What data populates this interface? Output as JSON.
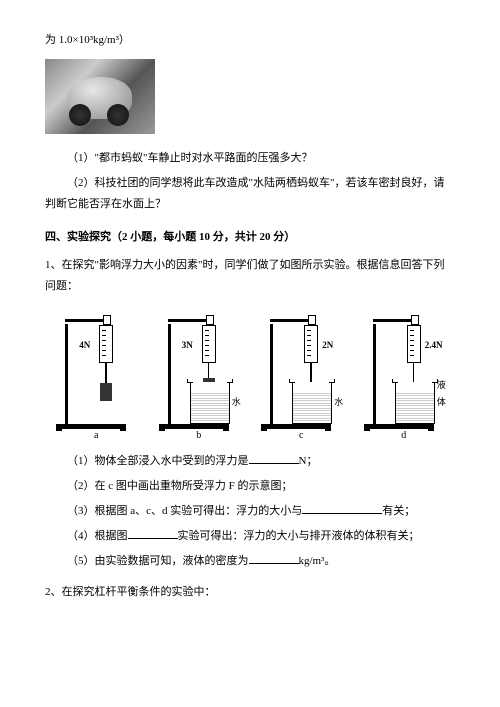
{
  "intro": "为 1.0×10³kg/m³）",
  "q1": "（1）\"都市蚂蚁\"车静止时对水平路面的压强多大？",
  "q2": "（2）科技社团的同学想将此车改造成\"水陆两栖蚂蚁车\"，若该车密封良好，请判断它能否浮在水面上？",
  "section4": "四、实验探究（2 小题，每小题 10 分，共计 20 分）",
  "p1": "1、在探究\"影响浮力大小的因素\"时，同学们做了如图所示实验。根据信息回答下列问题：",
  "experiments": [
    {
      "label": "a",
      "reading": "4N",
      "readingLeft": "27px",
      "beaker": false,
      "liquid": "",
      "hookH": "20px",
      "weightTop": "74px"
    },
    {
      "label": "b",
      "reading": "3N",
      "readingLeft": "27px",
      "beaker": true,
      "liquid": "水",
      "liquidLeft": "78px",
      "hookH": "15px",
      "weightTop": "69px"
    },
    {
      "label": "c",
      "reading": "2N",
      "readingLeft": "65px",
      "beaker": true,
      "liquid": "水",
      "liquidLeft": "78px",
      "hookH": "22px",
      "weightTop": "76px"
    },
    {
      "label": "d",
      "reading": "2.4N",
      "readingLeft": "65px",
      "beaker": true,
      "liquid": "液体",
      "liquidLeft": "78px",
      "hookH": "22px",
      "weightTop": "76px"
    }
  ],
  "sub1a": "（1）物体全部浸入水中受到的浮力是",
  "sub1b": "N；",
  "sub2": "（2）在 c 图中画出重物所受浮力 F 的示意图；",
  "sub3a": "（3）根据图 a、c、d 实验可得出：浮力的大小与",
  "sub3b": "有关；",
  "sub4a": "（4）根据图",
  "sub4b": "实验可得出：浮力的大小与排开液体的体积有关；",
  "sub5a": "（5）由实验数据可知，液体的密度为",
  "sub5b": "kg/m³。",
  "p2": "2、在探究杠杆平衡条件的实验中："
}
